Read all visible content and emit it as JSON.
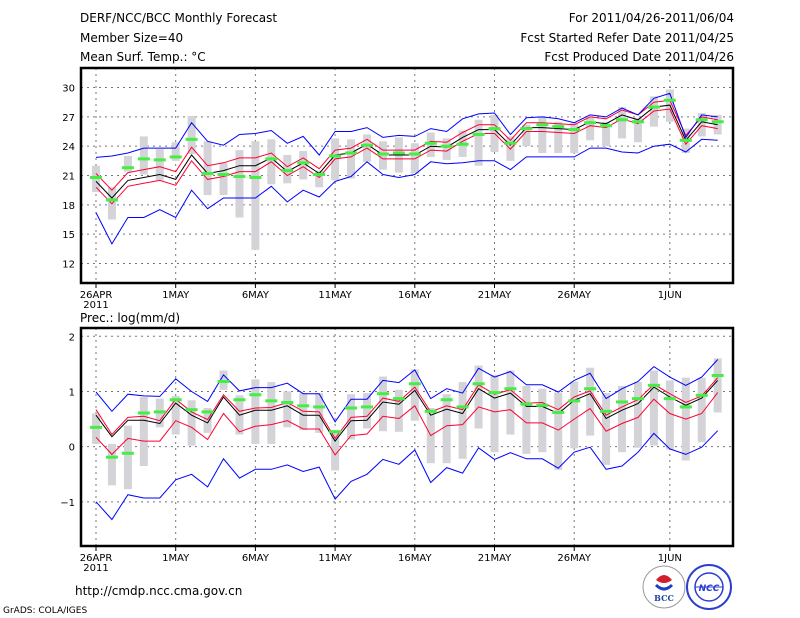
{
  "header": {
    "title": "DERF/NCC/BCC Monthly Forecast",
    "member_size": "Member Size=40",
    "variable": "Mean Surf. Temp.: °C",
    "period": "For 2011/04/26-2011/06/04",
    "started": "Fcst Started Refer Date 2011/04/25",
    "produced": "Fcst Produced Date 2011/04/26"
  },
  "footer": {
    "url": "http://cmdp.ncc.cma.gov.cn",
    "credit": "GrADS: COLA/IGES",
    "logo_bcc": "BCC",
    "logo_ncc": "NCC"
  },
  "colors": {
    "spread": "#ff0033",
    "extreme": "#0000ff",
    "mean": "#000000",
    "box": "#d3d3d8",
    "marker": "#44ee44"
  },
  "chart_data": [
    {
      "type": "line",
      "title": "Mean Surf. Temp.: °C",
      "ylim": [
        10,
        32
      ],
      "yticks": [
        12,
        15,
        18,
        21,
        24,
        27,
        30
      ],
      "ytick_labels": [
        "12",
        "15",
        "18",
        "21",
        "24",
        "27",
        "30"
      ],
      "xtick_labels": [
        "26APR",
        "1MAY",
        "6MAY",
        "11MAY",
        "16MAY",
        "21MAY",
        "26MAY",
        "1JUN"
      ],
      "xtick_days": [
        0,
        5,
        10,
        15,
        20,
        25,
        30,
        36
      ],
      "year_label": "2011",
      "grid": true,
      "days": 40,
      "series": [
        {
          "name": "mean",
          "values": [
            20.4,
            18.7,
            20.5,
            20.8,
            21.1,
            20.6,
            23.1,
            21.2,
            21.5,
            22.0,
            22.0,
            22.8,
            21.4,
            22.3,
            21.2,
            23.1,
            23.3,
            24.2,
            23.1,
            23.1,
            23.1,
            24.0,
            23.9,
            24.9,
            25.7,
            25.7,
            24.1,
            25.9,
            25.9,
            25.8,
            25.7,
            26.5,
            26.3,
            27.2,
            26.7,
            28.0,
            28.2,
            24.6,
            26.5,
            26.2
          ]
        },
        {
          "name": "spread_upper",
          "values": [
            21.2,
            19.5,
            21.3,
            21.6,
            21.9,
            21.4,
            23.9,
            22.0,
            22.3,
            22.8,
            22.8,
            23.3,
            21.9,
            22.8,
            21.7,
            23.6,
            23.8,
            24.7,
            23.6,
            23.6,
            23.6,
            24.5,
            24.4,
            25.4,
            26.2,
            26.2,
            24.6,
            26.4,
            26.4,
            26.3,
            26.2,
            27.0,
            26.8,
            27.7,
            27.2,
            28.5,
            28.7,
            25.1,
            27.0,
            26.7
          ]
        },
        {
          "name": "spread_lower",
          "values": [
            19.8,
            18.1,
            19.9,
            20.2,
            20.5,
            20.0,
            22.5,
            20.6,
            20.9,
            21.4,
            21.4,
            22.4,
            21.0,
            21.9,
            20.8,
            22.7,
            22.9,
            23.8,
            22.7,
            22.7,
            22.7,
            23.6,
            23.5,
            24.5,
            25.3,
            25.3,
            23.7,
            25.5,
            25.5,
            25.4,
            25.3,
            26.1,
            25.9,
            26.8,
            26.3,
            27.6,
            27.8,
            24.2,
            26.1,
            25.8
          ]
        },
        {
          "name": "max",
          "values": [
            22.85,
            23.0,
            23.3,
            23.8,
            23.8,
            23.8,
            26.4,
            24.5,
            24.1,
            25.2,
            25.3,
            25.6,
            24.3,
            25.0,
            23.1,
            25.5,
            25.5,
            25.9,
            24.9,
            25.1,
            25.0,
            25.8,
            25.5,
            26.8,
            27.3,
            27.4,
            25.2,
            26.9,
            27.0,
            26.8,
            26.4,
            27.2,
            27.0,
            27.9,
            27.2,
            28.9,
            29.4,
            24.9,
            27.2,
            27.0
          ]
        },
        {
          "name": "min",
          "values": [
            17.2,
            14.0,
            16.7,
            16.7,
            17.5,
            16.7,
            19.5,
            17.6,
            18.7,
            18.7,
            18.7,
            19.9,
            18.3,
            19.5,
            18.8,
            20.4,
            20.9,
            22.4,
            21.1,
            20.8,
            21.1,
            22.4,
            22.2,
            22.3,
            22.5,
            22.5,
            21.6,
            22.9,
            22.9,
            22.9,
            22.9,
            23.8,
            23.8,
            23.4,
            23.3,
            24.0,
            24.2,
            23.4,
            24.7,
            24.6
          ]
        },
        {
          "name": "marker",
          "values": [
            20.8,
            18.5,
            21.8,
            22.7,
            22.6,
            22.9,
            24.7,
            21.2,
            21.1,
            20.9,
            20.8,
            22.7,
            21.5,
            22.3,
            21.1,
            23.0,
            23.3,
            24.1,
            23.2,
            23.3,
            23.2,
            24.3,
            24.0,
            24.2,
            25.2,
            25.8,
            24.3,
            25.8,
            26.2,
            26.0,
            25.7,
            26.4,
            26.1,
            26.7,
            26.5,
            28.0,
            28.7,
            24.6,
            26.7,
            26.5
          ]
        }
      ],
      "boxes": {
        "low": [
          19.3,
          16.5,
          21.4,
          21.1,
          20.5,
          22.5,
          23.2,
          19.0,
          19.0,
          16.7,
          13.4,
          20.1,
          20.2,
          20.6,
          19.8,
          20.5,
          20.7,
          22.4,
          21.6,
          21.3,
          21.2,
          22.9,
          22.6,
          22.9,
          22.0,
          23.4,
          22.5,
          24.0,
          23.3,
          23.3,
          23.3,
          24.6,
          24.0,
          24.8,
          24.4,
          26.0,
          26.5,
          23.3,
          25.0,
          25.2
        ],
        "high": [
          22.0,
          19.8,
          23.0,
          25.0,
          23.7,
          24.4,
          27.1,
          24.5,
          22.3,
          23.6,
          24.5,
          24.7,
          23.1,
          23.5,
          21.5,
          24.8,
          24.7,
          25.2,
          24.5,
          24.9,
          24.3,
          25.4,
          24.8,
          25.6,
          26.7,
          27.2,
          25.0,
          26.2,
          27.0,
          26.5,
          26.4,
          26.9,
          26.5,
          28.0,
          26.9,
          29.1,
          29.8,
          25.8,
          27.4,
          27.2
        ]
      }
    },
    {
      "type": "line",
      "title": "Prec.: log(mm/d)",
      "ylim": [
        -1.8,
        2.15
      ],
      "yticks": [
        -1,
        0,
        1,
        2
      ],
      "ytick_labels": [
        "−1",
        "0",
        "1",
        "2"
      ],
      "xtick_labels": [
        "26APR",
        "1MAY",
        "6MAY",
        "11MAY",
        "16MAY",
        "21MAY",
        "26MAY",
        "1JUN"
      ],
      "xtick_days": [
        0,
        5,
        10,
        15,
        20,
        25,
        30,
        36
      ],
      "year_label": "2011",
      "grid": true,
      "days": 40,
      "series": [
        {
          "name": "mean",
          "values": [
            0.57,
            0.18,
            0.48,
            0.48,
            0.42,
            0.79,
            0.57,
            0.43,
            0.9,
            0.57,
            0.66,
            0.66,
            0.74,
            0.57,
            0.57,
            0.1,
            0.47,
            0.48,
            0.81,
            0.77,
            1.02,
            0.57,
            0.68,
            0.6,
            1.05,
            0.88,
            0.97,
            0.73,
            0.73,
            0.6,
            0.84,
            0.96,
            0.51,
            0.66,
            0.78,
            1.08,
            0.9,
            0.75,
            0.88,
            1.2
          ]
        },
        {
          "name": "spread_upper",
          "values": [
            0.67,
            0.22,
            0.53,
            0.55,
            0.47,
            0.86,
            0.63,
            0.49,
            0.94,
            0.64,
            0.7,
            0.71,
            0.8,
            0.64,
            0.63,
            0.15,
            0.53,
            0.55,
            0.88,
            0.82,
            1.08,
            0.63,
            0.74,
            0.67,
            1.12,
            0.95,
            1.03,
            0.79,
            0.8,
            0.67,
            0.9,
            1.01,
            0.57,
            0.72,
            0.85,
            1.13,
            0.96,
            0.8,
            0.92,
            1.25
          ]
        },
        {
          "name": "spread_lower",
          "values": [
            0.17,
            -0.14,
            0.15,
            0.1,
            0.1,
            0.47,
            0.35,
            0.13,
            0.6,
            0.27,
            0.37,
            0.4,
            0.47,
            0.32,
            0.32,
            -0.15,
            0.2,
            0.23,
            0.55,
            0.51,
            0.74,
            0.2,
            0.38,
            0.4,
            0.72,
            0.63,
            0.67,
            0.43,
            0.43,
            0.3,
            0.5,
            0.69,
            0.28,
            0.42,
            0.53,
            0.86,
            0.6,
            0.5,
            0.6,
            0.98
          ]
        },
        {
          "name": "max",
          "values": [
            0.99,
            0.64,
            0.95,
            0.92,
            0.91,
            1.23,
            1.0,
            0.82,
            1.3,
            1.01,
            1.07,
            1.07,
            1.15,
            0.96,
            0.96,
            0.45,
            0.86,
            0.86,
            1.2,
            1.16,
            1.39,
            0.87,
            1.05,
            0.97,
            1.42,
            1.26,
            1.36,
            1.12,
            1.12,
            0.99,
            1.2,
            1.33,
            0.87,
            1.05,
            1.18,
            1.45,
            1.26,
            1.11,
            1.26,
            1.58
          ]
        },
        {
          "name": "min",
          "values": [
            -1.0,
            -1.32,
            -0.87,
            -0.93,
            -0.93,
            -0.6,
            -0.5,
            -0.73,
            -0.22,
            -0.57,
            -0.41,
            -0.41,
            -0.33,
            -0.45,
            -0.37,
            -0.95,
            -0.63,
            -0.5,
            -0.23,
            -0.32,
            -0.06,
            -0.65,
            -0.38,
            -0.48,
            -0.02,
            -0.23,
            -0.11,
            -0.22,
            -0.22,
            -0.39,
            -0.1,
            -0.01,
            -0.41,
            -0.35,
            -0.1,
            0.24,
            -0.04,
            -0.14,
            -0.01,
            0.29
          ]
        },
        {
          "name": "marker",
          "values": [
            0.35,
            -0.19,
            -0.12,
            0.61,
            0.63,
            0.85,
            0.67,
            0.63,
            1.18,
            0.85,
            0.94,
            0.83,
            0.8,
            0.74,
            0.72,
            0.27,
            0.7,
            0.72,
            0.96,
            0.87,
            1.14,
            0.64,
            0.85,
            0.72,
            1.14,
            0.98,
            1.05,
            0.77,
            0.75,
            0.62,
            0.83,
            1.05,
            0.64,
            0.81,
            0.87,
            1.11,
            0.87,
            0.72,
            0.93,
            1.29
          ]
        }
      ],
      "boxes": {
        "low": [
          0.05,
          -0.7,
          -0.77,
          -0.35,
          0.35,
          0.22,
          0.02,
          0.25,
          1.03,
          0.22,
          0.05,
          0.05,
          0.35,
          0.3,
          0.25,
          -0.43,
          0.13,
          0.33,
          0.28,
          0.27,
          0.47,
          -0.3,
          -0.3,
          -0.22,
          0.33,
          -0.1,
          0.22,
          -0.13,
          -0.1,
          -0.42,
          -0.03,
          0.2,
          -0.33,
          -0.1,
          -0.02,
          0.02,
          -0.05,
          -0.25,
          0.08,
          0.62
        ],
        "high": [
          0.6,
          0.05,
          0.38,
          0.9,
          0.87,
          0.92,
          0.84,
          0.7,
          1.38,
          0.93,
          1.22,
          1.17,
          1.0,
          0.97,
          0.97,
          0.3,
          0.95,
          0.97,
          1.27,
          1.03,
          1.4,
          0.7,
          0.95,
          1.17,
          1.47,
          1.3,
          1.38,
          1.1,
          1.05,
          0.98,
          1.18,
          1.43,
          0.97,
          1.1,
          1.17,
          1.38,
          1.2,
          1.25,
          1.25,
          1.6
        ]
      }
    }
  ]
}
